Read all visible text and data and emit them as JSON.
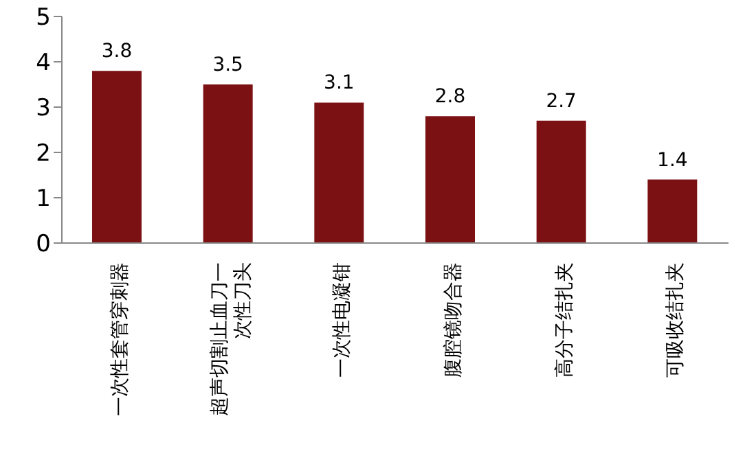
{
  "chart_data": {
    "type": "bar",
    "categories": [
      "一次性套管穿刺器",
      "超声切割止血刀一次性刀头",
      "一次性电凝钳",
      "腹腔镜吻合器",
      "高分子结扎夹",
      "可吸收结扎夹"
    ],
    "values": [
      3.8,
      3.5,
      3.1,
      2.8,
      2.7,
      1.4
    ],
    "color": "#7b1113",
    "ylim": [
      0,
      5
    ],
    "yticks": [
      0,
      1,
      2,
      3,
      4,
      5
    ],
    "grid": false,
    "data_labels": true,
    "legend": false
  }
}
